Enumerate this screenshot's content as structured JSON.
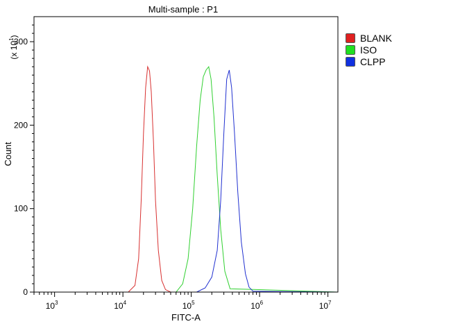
{
  "chart_data": {
    "type": "line",
    "title": "Multi-sample : P1",
    "xlabel": "FITC-A",
    "ylabel": "Count",
    "y_multiplier_label": "(x 10",
    "y_multiplier_exp": "1",
    "y_multiplier_close": ")",
    "x_scale": "log",
    "xlim": [
      500,
      14000000
    ],
    "ylim": [
      0,
      330
    ],
    "y_ticks": [
      0,
      100,
      200,
      300
    ],
    "y_tick_labels": [
      "0",
      "100",
      "200",
      "300"
    ],
    "x_ticks": [
      {
        "value": 1000,
        "base": "10",
        "exp": "3"
      },
      {
        "value": 10000,
        "base": "10",
        "exp": "4"
      },
      {
        "value": 100000,
        "base": "10",
        "exp": "5"
      },
      {
        "value": 1000000,
        "base": "10",
        "exp": "6"
      },
      {
        "value": 10000000,
        "base": "10",
        "exp": "7"
      }
    ],
    "grid": false,
    "legend_position": "top-right",
    "series": [
      {
        "name": "BLANK",
        "color": "#d83030",
        "legend_color": "#e02020",
        "x": [
          500,
          12000,
          15000,
          17000,
          18500,
          20000,
          21500,
          23000,
          24500,
          26000,
          28000,
          30000,
          33000,
          37000,
          42000,
          50000,
          14000000
        ],
        "y": [
          0,
          0,
          8,
          40,
          110,
          190,
          245,
          270,
          265,
          240,
          180,
          110,
          50,
          14,
          3,
          0,
          0
        ]
      },
      {
        "name": "ISO",
        "color": "#30d030",
        "legend_color": "#20e020",
        "x": [
          500,
          60000,
          75000,
          90000,
          105000,
          120000,
          135000,
          150000,
          165000,
          180000,
          195000,
          215000,
          240000,
          270000,
          310000,
          370000,
          14000000
        ],
        "y": [
          0,
          0,
          10,
          40,
          100,
          175,
          230,
          258,
          266,
          270,
          255,
          210,
          140,
          75,
          25,
          4,
          0
        ]
      },
      {
        "name": "CLPP",
        "color": "#2030d0",
        "legend_color": "#1030e0",
        "x": [
          500,
          120000,
          160000,
          200000,
          240000,
          270000,
          300000,
          330000,
          360000,
          390000,
          430000,
          480000,
          540000,
          620000,
          700000,
          800000,
          14000000
        ],
        "y": [
          0,
          0,
          5,
          18,
          50,
          110,
          190,
          255,
          266,
          245,
          190,
          120,
          60,
          22,
          6,
          1,
          0
        ]
      }
    ]
  }
}
